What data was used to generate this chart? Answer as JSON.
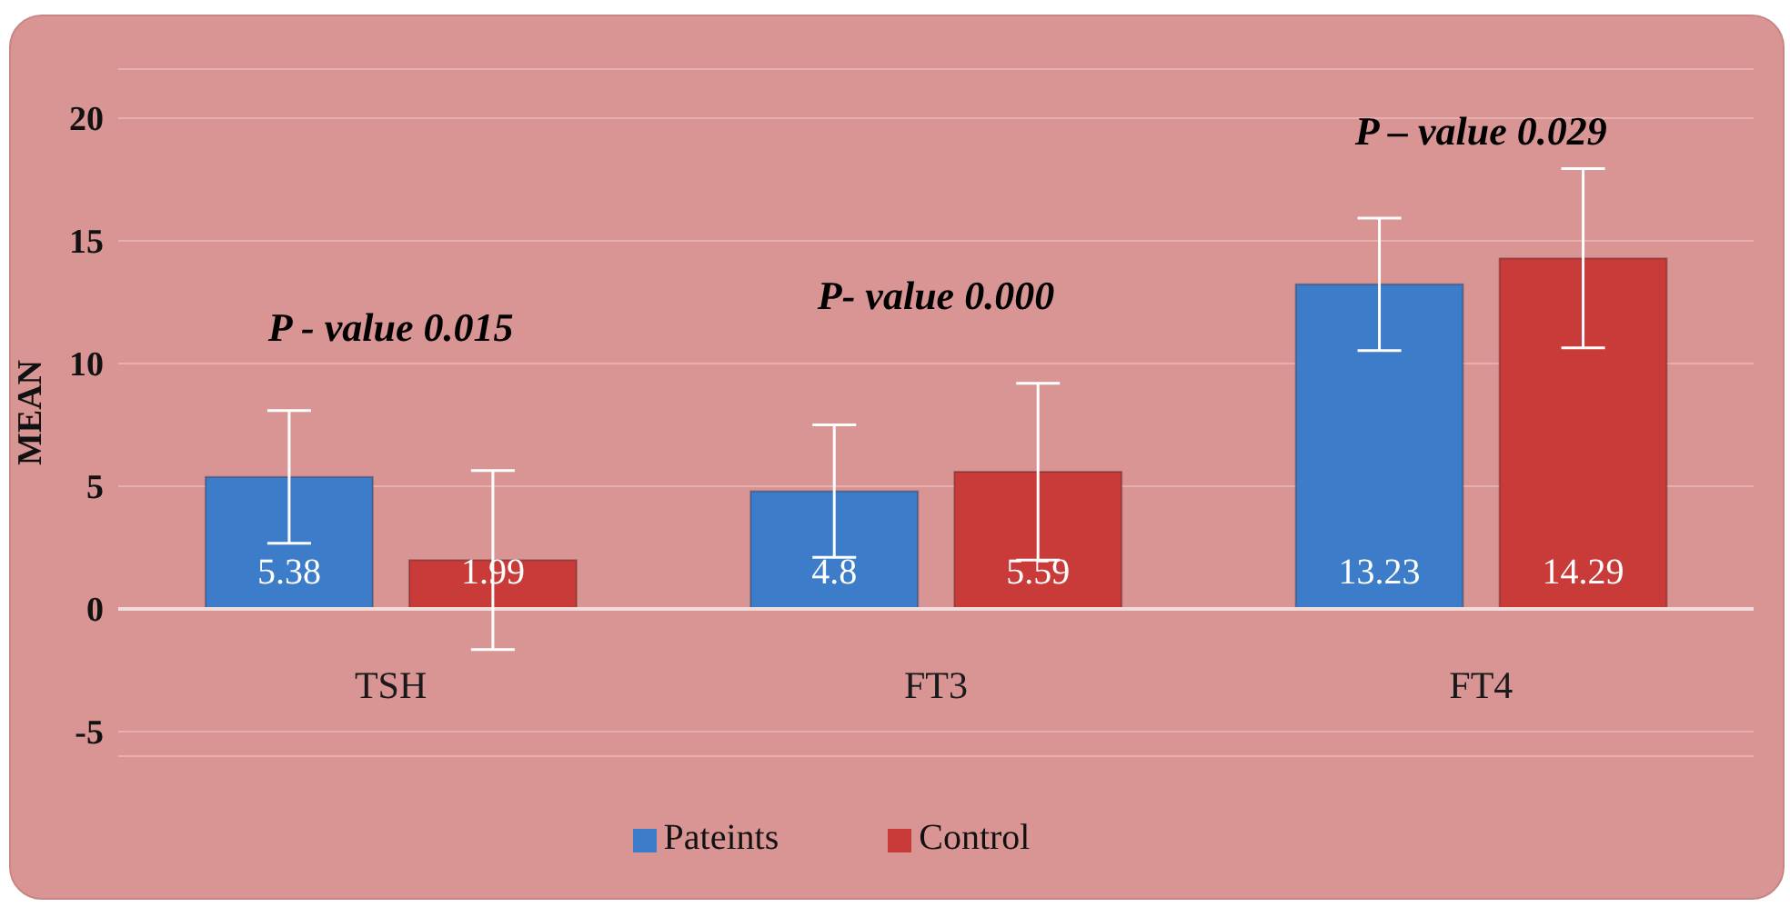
{
  "chart_data": {
    "type": "bar",
    "ylabel": "MEAN",
    "categories": [
      "TSH",
      "FT3",
      "FT4"
    ],
    "series": [
      {
        "name": "Pateints",
        "color": "#3d7cc9",
        "values": [
          5.38,
          4.8,
          13.23
        ],
        "errors": [
          2.7,
          2.7,
          2.7
        ]
      },
      {
        "name": "Control",
        "color": "#c83b38",
        "values": [
          1.99,
          5.59,
          14.29
        ],
        "errors": [
          3.65,
          3.6,
          3.65
        ]
      }
    ],
    "annotations": [
      "P - value 0.015",
      "P- value 0.000",
      "P – value 0.029"
    ],
    "ylim": [
      -6,
      22
    ],
    "yticks": [
      -5,
      0,
      5,
      10,
      15,
      20
    ],
    "grid": "y",
    "legend": "bottom",
    "data_labels": true
  }
}
